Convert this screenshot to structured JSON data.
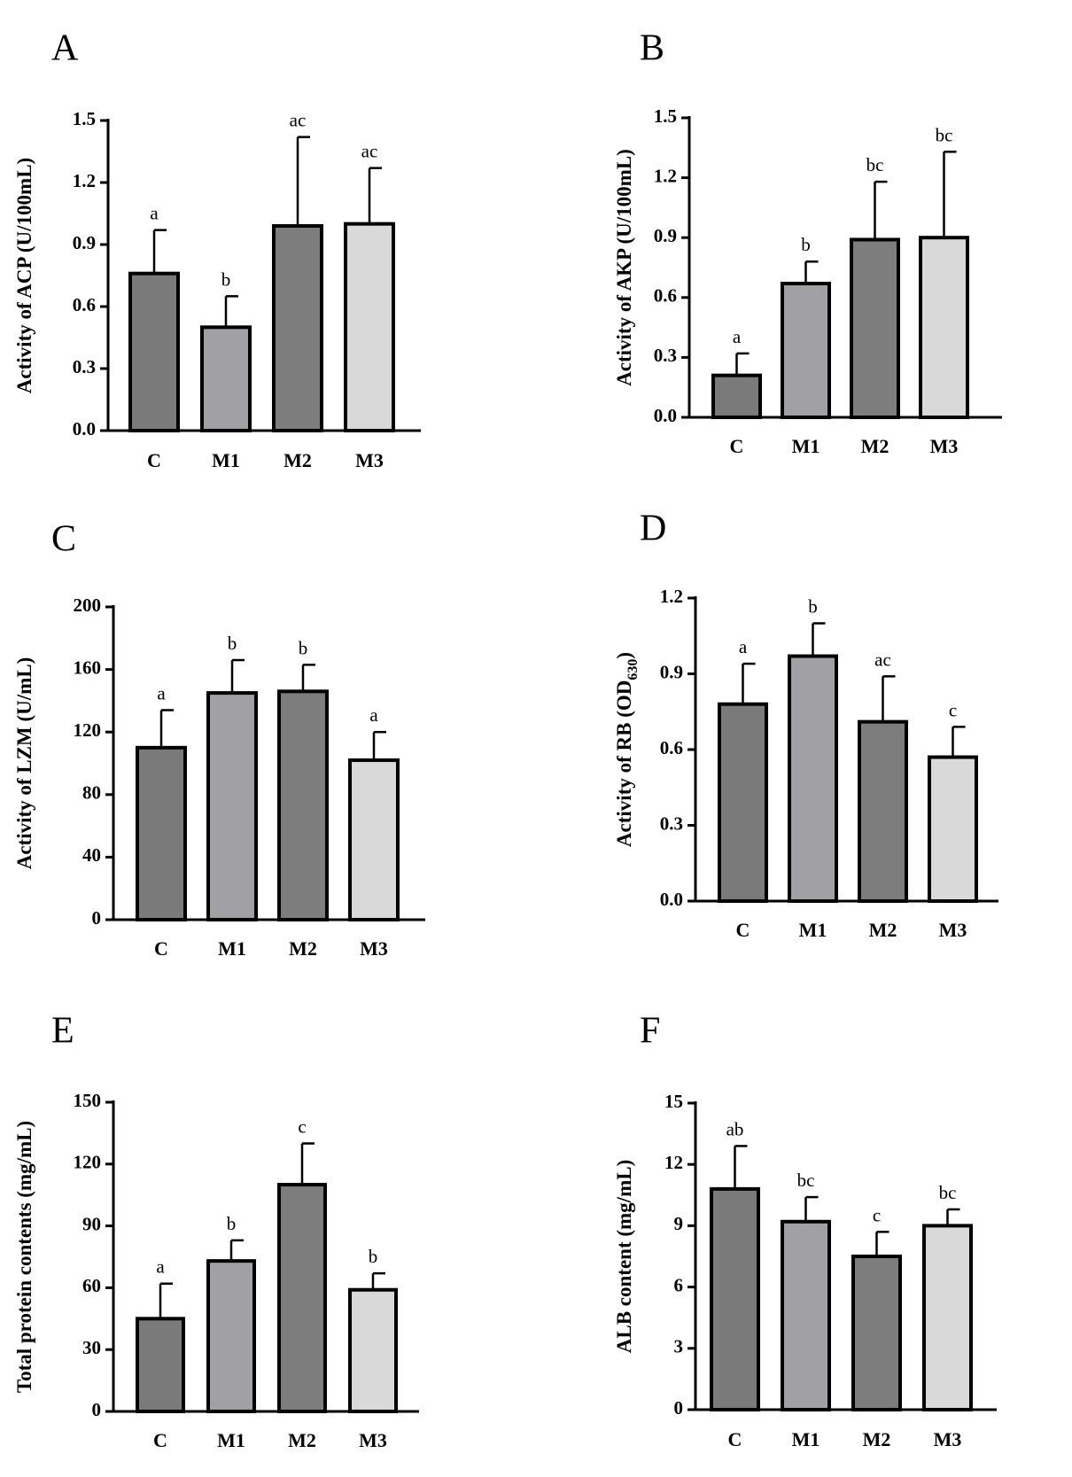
{
  "chart_data": [
    {
      "panel": "A",
      "type": "bar",
      "ylabel": "Activity of ACP (U/100mL)",
      "ylim": [
        0,
        1.5
      ],
      "yticks": [
        "0.0",
        "0.3",
        "0.6",
        "0.9",
        "1.2",
        "1.5"
      ],
      "categories": [
        "C",
        "M1",
        "M2",
        "M3"
      ],
      "values": [
        0.76,
        0.5,
        0.99,
        1.0
      ],
      "errors": [
        0.21,
        0.15,
        0.43,
        0.27
      ],
      "significance": [
        "a",
        "b",
        "ac",
        "ac"
      ],
      "bar_colors": [
        "#7a7a7a",
        "#a0a0a5",
        "#7d7d7d",
        "#d9d9d9"
      ]
    },
    {
      "panel": "B",
      "type": "bar",
      "ylabel": "Activity of AKP (U/100mL)",
      "ylim": [
        0,
        1.5
      ],
      "yticks": [
        "0.0",
        "0.3",
        "0.6",
        "0.9",
        "1.2",
        "1.5"
      ],
      "categories": [
        "C",
        "M1",
        "M2",
        "M3"
      ],
      "values": [
        0.21,
        0.67,
        0.89,
        0.9
      ],
      "errors": [
        0.11,
        0.11,
        0.29,
        0.43
      ],
      "significance": [
        "a",
        "b",
        "bc",
        "bc"
      ],
      "bar_colors": [
        "#7a7a7a",
        "#a0a0a5",
        "#7d7d7d",
        "#d9d9d9"
      ]
    },
    {
      "panel": "C",
      "type": "bar",
      "ylabel": "Activity of LZM (U/mL)",
      "ylim": [
        0,
        200
      ],
      "yticks": [
        "0",
        "40",
        "80",
        "120",
        "160",
        "200"
      ],
      "categories": [
        "C",
        "M1",
        "M2",
        "M3"
      ],
      "values": [
        110,
        145,
        146,
        102
      ],
      "errors": [
        24,
        21,
        17,
        18
      ],
      "significance": [
        "a",
        "b",
        "b",
        "a"
      ],
      "bar_colors": [
        "#7a7a7a",
        "#a0a0a5",
        "#7d7d7d",
        "#d9d9d9"
      ]
    },
    {
      "panel": "D",
      "type": "bar",
      "ylabel": "Activity of RB (OD",
      "ylabel_sub": "630",
      "ylabel_end": ")",
      "ylim": [
        0,
        1.2
      ],
      "yticks": [
        "0.0",
        "0.3",
        "0.6",
        "0.9",
        "1.2"
      ],
      "categories": [
        "C",
        "M1",
        "M2",
        "M3"
      ],
      "values": [
        0.78,
        0.97,
        0.71,
        0.57
      ],
      "errors": [
        0.16,
        0.13,
        0.18,
        0.12
      ],
      "significance": [
        "a",
        "b",
        "ac",
        "c"
      ],
      "bar_colors": [
        "#7a7a7a",
        "#a0a0a5",
        "#7d7d7d",
        "#d9d9d9"
      ]
    },
    {
      "panel": "E",
      "type": "bar",
      "ylabel": "Total protein contents (mg/mL)",
      "ylim": [
        0,
        150
      ],
      "yticks": [
        "0",
        "30",
        "60",
        "90",
        "120",
        "150"
      ],
      "categories": [
        "C",
        "M1",
        "M2",
        "M3"
      ],
      "values": [
        45,
        73,
        110,
        59
      ],
      "errors": [
        17,
        10,
        20,
        8
      ],
      "significance": [
        "a",
        "b",
        "c",
        "b"
      ],
      "bar_colors": [
        "#7a7a7a",
        "#a0a0a5",
        "#7d7d7d",
        "#d9d9d9"
      ]
    },
    {
      "panel": "F",
      "type": "bar",
      "ylabel": "ALB content (mg/mL)",
      "ylim": [
        0,
        15
      ],
      "yticks": [
        "0",
        "3",
        "6",
        "9",
        "12",
        "15"
      ],
      "categories": [
        "C",
        "M1",
        "M2",
        "M3"
      ],
      "values": [
        10.8,
        9.2,
        7.5,
        9.0
      ],
      "errors": [
        2.1,
        1.2,
        1.2,
        0.8
      ],
      "significance": [
        "ab",
        "bc",
        "c",
        "bc"
      ],
      "bar_colors": [
        "#7a7a7a",
        "#a0a0a5",
        "#7d7d7d",
        "#d9d9d9"
      ]
    }
  ]
}
